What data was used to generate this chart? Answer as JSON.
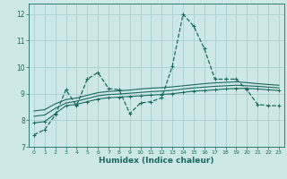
{
  "xlabel": "Humidex (Indice chaleur)",
  "bg_color": "#cde8e5",
  "grid_color": "#aacfcc",
  "line_color": "#1a6b5a",
  "xlim": [
    -0.5,
    23.5
  ],
  "ylim": [
    7.0,
    12.4
  ],
  "yticks": [
    7,
    8,
    9,
    10,
    11,
    12
  ],
  "xticks": [
    0,
    1,
    2,
    3,
    4,
    5,
    6,
    7,
    8,
    9,
    10,
    11,
    12,
    13,
    14,
    15,
    16,
    17,
    18,
    19,
    20,
    21,
    22,
    23
  ],
  "line1_x": [
    0,
    1,
    2,
    3,
    4,
    5,
    6,
    7,
    8,
    9,
    10,
    11,
    12,
    13,
    14,
    15,
    16,
    17,
    18,
    19,
    20,
    21,
    22,
    23
  ],
  "line1_y": [
    7.45,
    7.65,
    8.2,
    9.15,
    8.55,
    9.55,
    9.8,
    9.2,
    9.15,
    8.25,
    8.65,
    8.7,
    8.85,
    10.05,
    12.0,
    11.55,
    10.7,
    9.55,
    9.55,
    9.55,
    9.15,
    8.6,
    8.55,
    8.55
  ],
  "line2_x": [
    0,
    1,
    2,
    3,
    4,
    5,
    6,
    7,
    8,
    9,
    10,
    11,
    12,
    13,
    14,
    15,
    16,
    17,
    18,
    19,
    20,
    21,
    22,
    23
  ],
  "line2_y": [
    7.9,
    7.95,
    8.25,
    8.55,
    8.6,
    8.7,
    8.8,
    8.85,
    8.87,
    8.9,
    8.92,
    8.95,
    8.97,
    9.0,
    9.05,
    9.1,
    9.12,
    9.15,
    9.18,
    9.2,
    9.2,
    9.18,
    9.15,
    9.12
  ],
  "line3_x": [
    0,
    1,
    2,
    3,
    4,
    5,
    6,
    7,
    8,
    9,
    10,
    11,
    12,
    13,
    14,
    15,
    16,
    17,
    18,
    19,
    20,
    21,
    22,
    23
  ],
  "line3_y": [
    8.15,
    8.2,
    8.45,
    8.65,
    8.72,
    8.82,
    8.92,
    8.97,
    8.99,
    9.02,
    9.05,
    9.08,
    9.1,
    9.13,
    9.18,
    9.22,
    9.25,
    9.28,
    9.3,
    9.32,
    9.3,
    9.28,
    9.25,
    9.22
  ],
  "line4_x": [
    0,
    1,
    2,
    3,
    4,
    5,
    6,
    7,
    8,
    9,
    10,
    11,
    12,
    13,
    14,
    15,
    16,
    17,
    18,
    19,
    20,
    21,
    22,
    23
  ],
  "line4_y": [
    8.35,
    8.4,
    8.62,
    8.78,
    8.84,
    8.94,
    9.04,
    9.09,
    9.11,
    9.14,
    9.18,
    9.21,
    9.23,
    9.26,
    9.3,
    9.34,
    9.38,
    9.41,
    9.43,
    9.45,
    9.42,
    9.38,
    9.35,
    9.32
  ]
}
